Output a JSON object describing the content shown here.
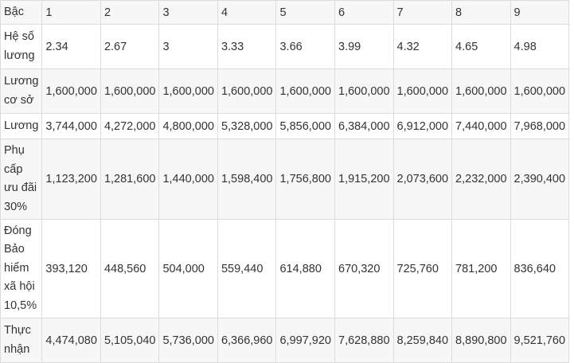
{
  "table": {
    "rows": [
      {
        "label": "Bậc",
        "cells": [
          "1",
          "2",
          "3",
          "4",
          "5",
          "6",
          "7",
          "8",
          "9"
        ]
      },
      {
        "label": "Hệ số lương",
        "cells": [
          "2.34",
          "2.67",
          "3",
          "3.33",
          "3.66",
          "3.99",
          "4.32",
          "4.65",
          "4.98"
        ]
      },
      {
        "label": "Lương cơ sở",
        "cells": [
          "1,600,000",
          "1,600,000",
          "1,600,000",
          "1,600,000",
          "1,600,000",
          "1,600,000",
          "1,600,000",
          "1,600,000",
          "1,600,000"
        ]
      },
      {
        "label": "Lương",
        "cells": [
          "3,744,000",
          "4,272,000",
          "4,800,000",
          "5,328,000",
          "5,856,000",
          "6,384,000",
          "6,912,000",
          "7,440,000",
          "7,968,000"
        ]
      },
      {
        "label": "Phụ cấp ưu đãi 30%",
        "cells": [
          "1,123,200",
          "1,281,600",
          "1,440,000",
          "1,598,400",
          "1,756,800",
          "1,915,200",
          "2,073,600",
          "2,232,000",
          "2,390,400"
        ]
      },
      {
        "label": "Đóng Bảo hiểm xã hội 10,5%",
        "cells": [
          "393,120",
          "448,560",
          "504,000",
          "559,440",
          "614,880",
          "670,320",
          "725,760",
          "781,200",
          "836,640"
        ]
      },
      {
        "label": "Thực nhận",
        "cells": [
          "4,474,080",
          "5,105,040",
          "5,736,000",
          "6,366,960",
          "6,997,920",
          "7,628,880",
          "8,259,840",
          "8,890,800",
          "9,521,760"
        ]
      }
    ]
  }
}
